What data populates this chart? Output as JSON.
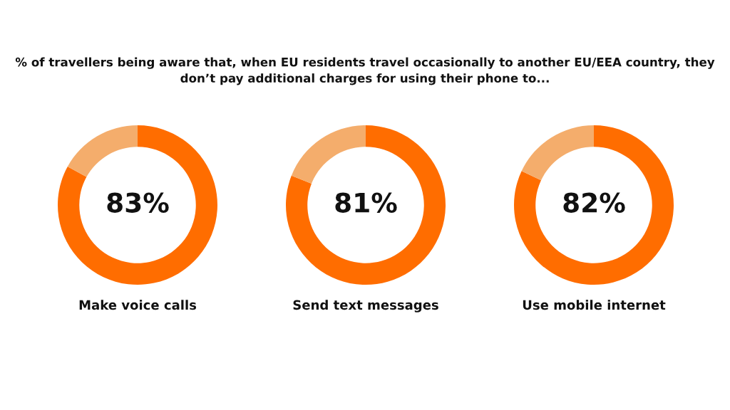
{
  "chart_data": [
    {
      "type": "donut",
      "title": "% of travellers being aware that, when EU residents travel occasionally to another EU/EEA country, they don’t pay additional charges for using their phone to...",
      "xlabel": "Make voice calls",
      "categories": [
        null,
        null
      ],
      "values": [
        83,
        17
      ],
      "colors": [
        "#ff6d00",
        "#f4ad6c"
      ],
      "value_labels": [
        "83%",
        null
      ]
    },
    {
      "type": "donut",
      "xlabel": "Send text messages",
      "categories": [
        null,
        null
      ],
      "values": [
        81,
        19
      ],
      "colors": [
        "#ff6d00",
        "#f4ad6c"
      ],
      "value_labels": [
        "81%",
        null
      ]
    },
    {
      "type": "donut",
      "xlabel": "Use mobile internet",
      "categories": [
        null,
        null
      ],
      "values": [
        82,
        18
      ],
      "colors": [
        "#ff6d00",
        "#f4ad6c"
      ],
      "value_labels": [
        "82%",
        null
      ]
    }
  ]
}
